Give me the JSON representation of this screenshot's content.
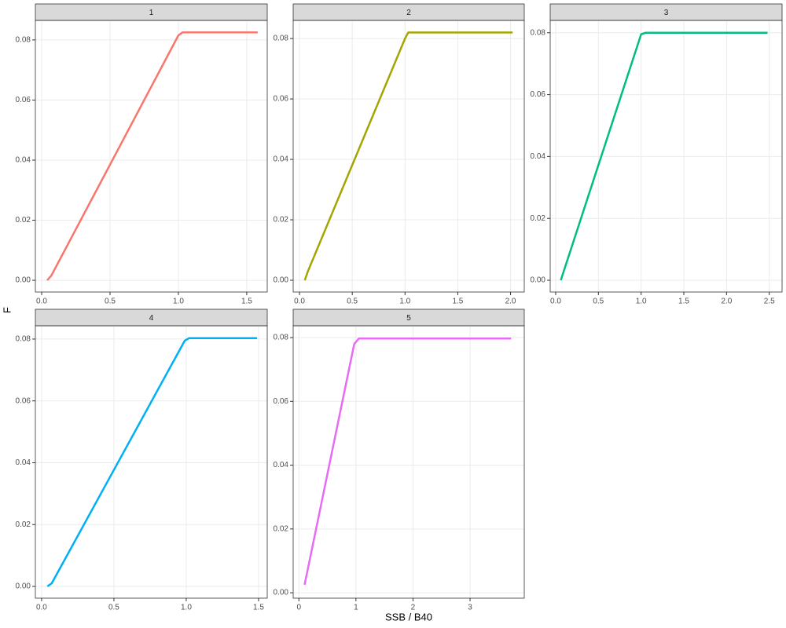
{
  "x_label": "SSB / B40",
  "y_label": "F",
  "chart_data": [
    {
      "type": "line",
      "title": "1",
      "color": "#F8766D",
      "grid": true,
      "x": [
        0.04,
        0.07,
        1.0,
        1.03,
        1.58
      ],
      "values": [
        0,
        0.0015,
        0.0815,
        0.0825,
        0.0825
      ],
      "xlim": [
        -0.046,
        1.65
      ],
      "ylim": [
        -0.0039,
        0.0865
      ],
      "xticks": [
        {
          "value": 0,
          "label": "0.0"
        },
        0.5,
        {
          "value": 1,
          "label": "1.0"
        },
        1.5
      ],
      "yticks": [
        {
          "value": 0,
          "label": "0.00"
        },
        0.02,
        0.04,
        0.06,
        0.08
      ]
    },
    {
      "type": "line",
      "title": "2",
      "color": "#A3A500",
      "grid": true,
      "x": [
        0.05,
        0.08,
        1.0,
        1.03,
        2.02
      ],
      "values": [
        0,
        0.003,
        0.08,
        0.082,
        0.082
      ],
      "xlim": [
        -0.06,
        2.13
      ],
      "ylim": [
        -0.0039,
        0.086
      ],
      "xticks": [
        {
          "value": 0,
          "label": "0.0"
        },
        0.5,
        {
          "value": 1,
          "label": "1.0"
        },
        1.5,
        {
          "value": 2,
          "label": "2.0"
        }
      ],
      "yticks": [
        {
          "value": 0,
          "label": "0.00"
        },
        0.02,
        0.04,
        0.06,
        0.08
      ]
    },
    {
      "type": "line",
      "title": "3",
      "color": "#00BF7D",
      "grid": true,
      "x": [
        0.06,
        1.0,
        1.05,
        2.48
      ],
      "values": [
        0,
        0.0795,
        0.08,
        0.08
      ],
      "xlim": [
        -0.064,
        2.65
      ],
      "ylim": [
        -0.0038,
        0.084
      ],
      "xticks": [
        {
          "value": 0,
          "label": "0.0"
        },
        0.5,
        {
          "value": 1,
          "label": "1.0"
        },
        1.5,
        {
          "value": 2,
          "label": "2.0"
        },
        2.5
      ],
      "yticks": [
        {
          "value": 0,
          "label": "0.00"
        },
        0.02,
        0.04,
        0.06,
        0.08
      ]
    },
    {
      "type": "line",
      "title": "4",
      "color": "#00B0F6",
      "grid": true,
      "x": [
        0.04,
        0.07,
        0.99,
        1.02,
        1.49
      ],
      "values": [
        0,
        0.001,
        0.0795,
        0.0803,
        0.0803
      ],
      "xlim": [
        -0.043,
        1.56
      ],
      "ylim": [
        -0.0038,
        0.0843
      ],
      "xticks": [
        {
          "value": 0,
          "label": "0.0"
        },
        0.5,
        {
          "value": 1,
          "label": "1.0"
        },
        1.5
      ],
      "yticks": [
        {
          "value": 0,
          "label": "0.00"
        },
        0.02,
        0.04,
        0.06,
        0.08
      ]
    },
    {
      "type": "line",
      "title": "5",
      "color": "#E76BF3",
      "grid": true,
      "x": [
        0.1,
        0.97,
        1.05,
        3.72
      ],
      "values": [
        0.0025,
        0.078,
        0.0797,
        0.0797
      ],
      "xlim": [
        -0.1,
        3.95
      ],
      "ylim": [
        -0.0017,
        0.0837
      ],
      "xticks": [
        0,
        1,
        2,
        3
      ],
      "yticks": [
        {
          "value": 0,
          "label": "0.00"
        },
        0.02,
        0.04,
        0.06,
        0.08
      ]
    }
  ]
}
